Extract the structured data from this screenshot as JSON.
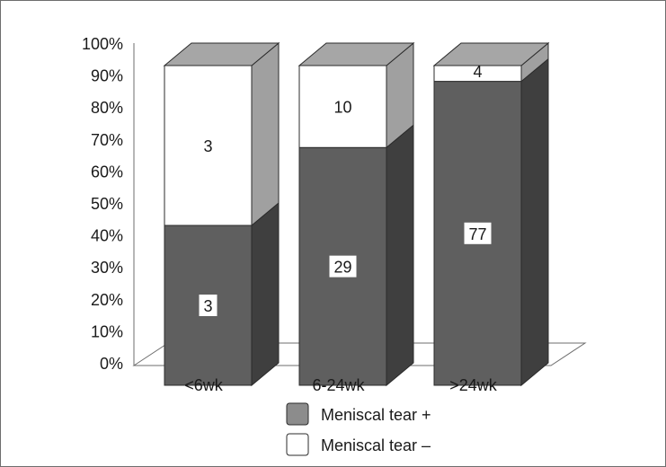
{
  "chart_data": {
    "type": "bar",
    "stacked": true,
    "three_d": true,
    "percent_stacked": true,
    "categories": [
      "<6wk",
      "6-24wk",
      ">24wk"
    ],
    "series": [
      {
        "name": "Meniscal tear +",
        "values": [
          3,
          29,
          77
        ],
        "color": "#5f5f5f"
      },
      {
        "name": "Meniscal tear –",
        "values": [
          3,
          10,
          4
        ],
        "color": "#ffffff"
      }
    ],
    "legend_colors": [
      "#8c8c8c",
      "#ffffff"
    ],
    "yticks": [
      "0%",
      "10%",
      "20%",
      "30%",
      "40%",
      "50%",
      "60%",
      "70%",
      "80%",
      "90%",
      "100%"
    ],
    "ylim": [
      0,
      100
    ],
    "grid": false,
    "legend": "bottom"
  }
}
